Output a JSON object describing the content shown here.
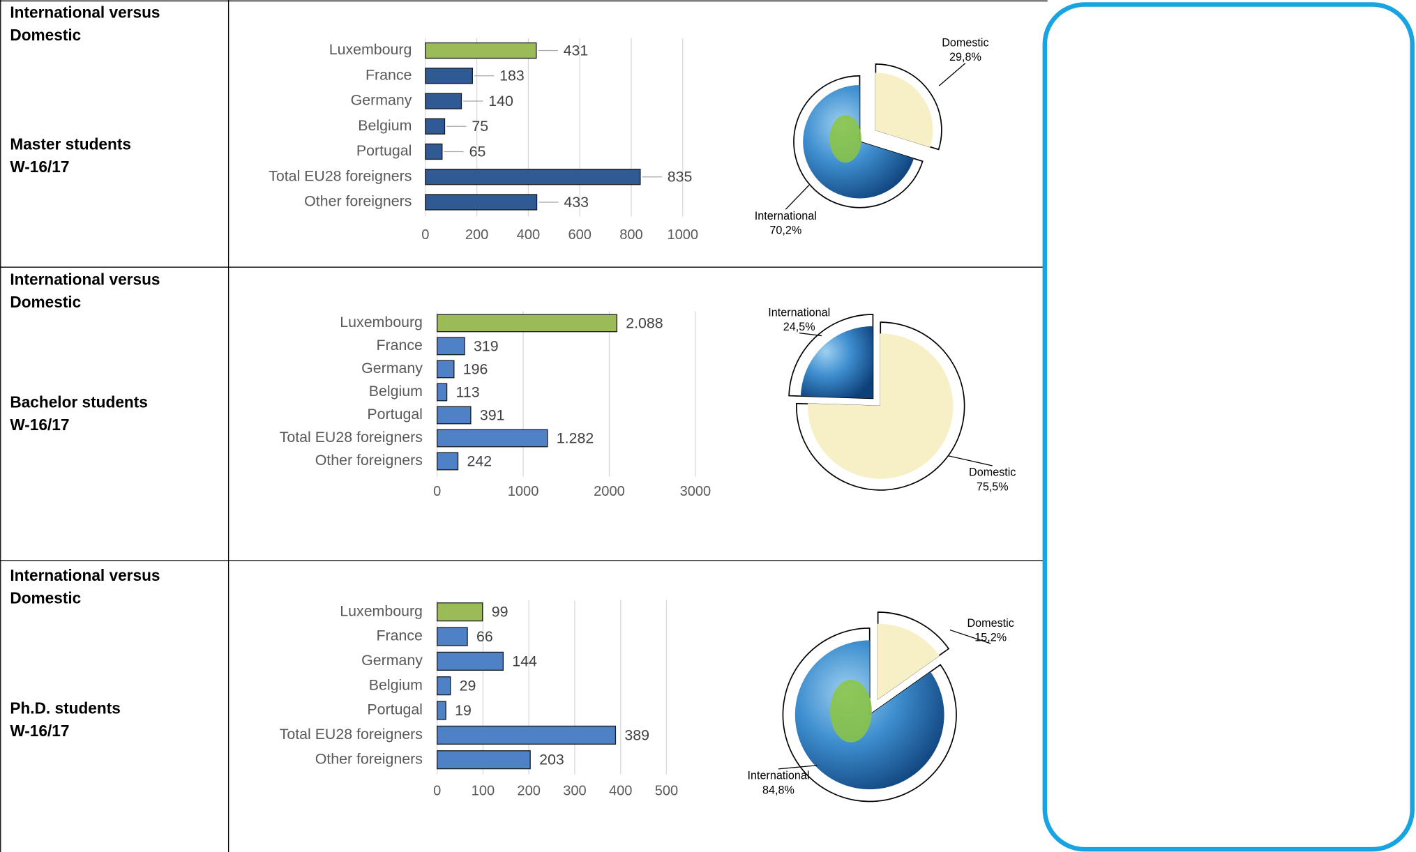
{
  "table": {
    "rows": [
      {
        "heading": [
          "International versus",
          "Domestic"
        ],
        "group": "Master students",
        "term": "W-16/17"
      },
      {
        "heading": [
          "International versus",
          "Domestic"
        ],
        "group": "Bachelor students",
        "term": "W-16/17"
      },
      {
        "heading": [
          "International versus",
          "Domestic"
        ],
        "group": "Ph.D. students",
        "term": "W-16/17"
      }
    ]
  },
  "chart_data": [
    {
      "type": "bar",
      "orientation": "horizontal",
      "categories": [
        "Luxembourg",
        "France",
        "Germany",
        "Belgium",
        "Portugal",
        "Total EU28 foreigners",
        "Other foreigners"
      ],
      "values": [
        431,
        183,
        140,
        75,
        65,
        835,
        433
      ],
      "colors": [
        "#9bbb59",
        "#2f5a93",
        "#2f5a93",
        "#2f5a93",
        "#2f5a93",
        "#2f5a93",
        "#2f5a93"
      ],
      "xlim": [
        0,
        1000
      ],
      "xticks": [
        0,
        200,
        400,
        600,
        800,
        1000
      ],
      "grid": true,
      "value_label_leaders": true
    },
    {
      "type": "pie",
      "categories": [
        "Domestic",
        "International"
      ],
      "values": [
        29.8,
        70.2
      ],
      "value_labels": [
        "29,8%",
        "70,2%"
      ],
      "colors": [
        "#f7f0c6",
        "#2f7dbf"
      ],
      "exploded": "Domestic"
    },
    {
      "type": "bar",
      "orientation": "horizontal",
      "categories": [
        "Luxembourg",
        "France",
        "Germany",
        "Belgium",
        "Portugal",
        "Total EU28 foreigners",
        "Other foreigners"
      ],
      "values": [
        2088,
        319,
        196,
        113,
        391,
        1282,
        242
      ],
      "value_labels": [
        "2.088",
        "319",
        "196",
        "113",
        "391",
        "1.282",
        "242"
      ],
      "colors": [
        "#9bbb59",
        "#4f81c7",
        "#4f81c7",
        "#4f81c7",
        "#4f81c7",
        "#4f81c7",
        "#4f81c7"
      ],
      "xlim": [
        0,
        3000
      ],
      "xticks": [
        0,
        1000,
        2000,
        3000
      ],
      "grid": true
    },
    {
      "type": "pie",
      "categories": [
        "Domestic",
        "International"
      ],
      "values": [
        75.5,
        24.5
      ],
      "value_labels": [
        "75,5%",
        "24,5%"
      ],
      "colors": [
        "#f7f0c6",
        "#2f7dbf"
      ],
      "exploded": "International"
    },
    {
      "type": "bar",
      "orientation": "horizontal",
      "categories": [
        "Luxembourg",
        "France",
        "Germany",
        "Belgium",
        "Portugal",
        "Total EU28 foreigners",
        "Other foreigners"
      ],
      "values": [
        99,
        66,
        144,
        29,
        19,
        389,
        203
      ],
      "colors": [
        "#9bbb59",
        "#4f81c7",
        "#4f81c7",
        "#4f81c7",
        "#4f81c7",
        "#4f81c7",
        "#4f81c7"
      ],
      "xlim": [
        0,
        500
      ],
      "xticks": [
        0,
        100,
        200,
        300,
        400,
        500
      ],
      "grid": true
    },
    {
      "type": "pie",
      "categories": [
        "Domestic",
        "International"
      ],
      "values": [
        15.2,
        84.8
      ],
      "value_labels": [
        "15,2%",
        "84,8%"
      ],
      "colors": [
        "#f7f0c6",
        "#2f7dbf"
      ],
      "exploded": "Domestic"
    }
  ]
}
